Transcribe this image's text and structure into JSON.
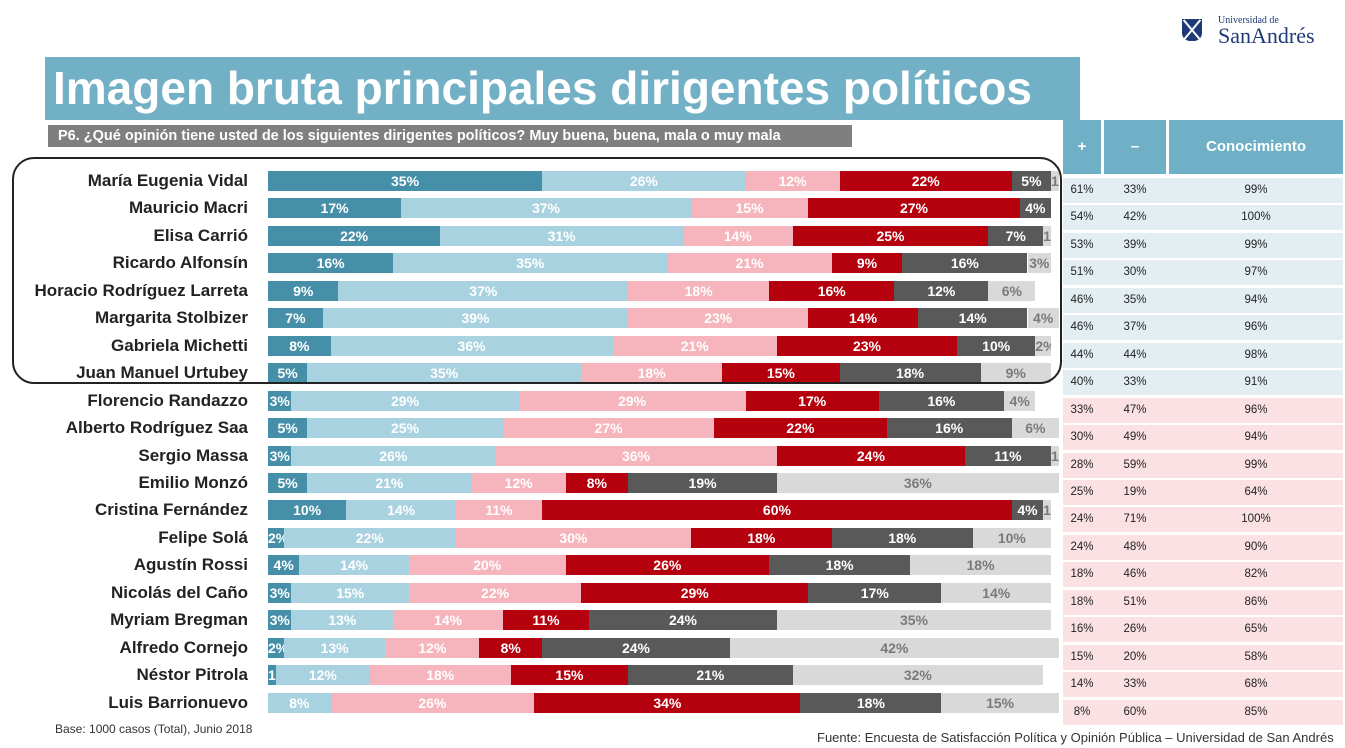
{
  "logo": {
    "line1": "Universidad de",
    "line2": "SanAndrés"
  },
  "title": "Imagen bruta principales dirigentes políticos",
  "subtitle": "P6. ¿Qué opinión tiene usted de los siguientes dirigentes políticos? Muy buena, buena, mala o muy mala",
  "table": {
    "headers": [
      "+",
      "–",
      "Conocimiento"
    ]
  },
  "footer": {
    "base": "Base: 1000 casos (Total),  Junio  2018",
    "fuente": "Fuente: Encuesta de Satisfacción Política y Opinión Pública – Universidad de San Andrés"
  },
  "colors": {
    "muy_buena": "#468fa8",
    "buena": "#a9d2e0",
    "mala": "#f6b4bc",
    "muy_mala": "#b5000d",
    "no_conoce": "#595959",
    "ns_nc": "#d9d9d9",
    "table_positive": "#e3eef3",
    "table_negative": "#fbe1e3"
  },
  "chart_data": {
    "type": "bar",
    "orientation": "horizontal-stacked-100",
    "title": "Imagen bruta principales dirigentes políticos",
    "categories": [
      "María Eugenia Vidal",
      "Mauricio Macri",
      "Elisa Carrió",
      "Ricardo Alfonsín",
      "Horacio Rodríguez Larreta",
      "Margarita Stolbizer",
      "Gabriela Michetti",
      "Juan Manuel Urtubey",
      "Florencio Randazzo",
      "Alberto Rodríguez Saa",
      "Sergio Massa",
      "Emilio Monzó",
      "Cristina Fernández",
      "Felipe Solá",
      "Agustín Rossi",
      "Nicolás del Caño",
      "Myriam Bregman",
      "Alfredo Cornejo",
      "Néstor Pitrola",
      "Luis Barrionuevo"
    ],
    "series": [
      {
        "values": [
          35,
          17,
          22,
          16,
          9,
          7,
          8,
          5,
          3,
          5,
          3,
          5,
          10,
          2,
          4,
          3,
          3,
          2,
          1,
          0
        ]
      },
      {
        "values": [
          26,
          37,
          31,
          35,
          37,
          39,
          36,
          35,
          29,
          25,
          26,
          21,
          14,
          22,
          14,
          15,
          13,
          13,
          12,
          8
        ]
      },
      {
        "values": [
          12,
          15,
          14,
          21,
          18,
          23,
          21,
          18,
          29,
          27,
          36,
          12,
          11,
          30,
          20,
          22,
          14,
          12,
          18,
          26
        ]
      },
      {
        "values": [
          22,
          27,
          25,
          9,
          16,
          14,
          23,
          15,
          17,
          22,
          24,
          8,
          60,
          18,
          26,
          29,
          11,
          8,
          15,
          34
        ]
      },
      {
        "values": [
          5,
          4,
          7,
          16,
          12,
          14,
          10,
          18,
          16,
          16,
          11,
          19,
          4,
          18,
          18,
          17,
          24,
          24,
          21,
          18
        ]
      },
      {
        "values": [
          1,
          0,
          1,
          3,
          6,
          4,
          2,
          9,
          4,
          6,
          1,
          36,
          1,
          10,
          18,
          14,
          35,
          42,
          32,
          15
        ]
      }
    ],
    "highlighted_group": [
      "María Eugenia Vidal",
      "Mauricio Macri",
      "Elisa Carrió",
      "Ricardo Alfonsín",
      "Horacio Rodríguez Larreta",
      "Margarita Stolbizer",
      "Gabriela Michetti",
      "Juan Manuel Urtubey"
    ],
    "table": {
      "positive": [
        "61%",
        "54%",
        "53%",
        "51%",
        "46%",
        "46%",
        "44%",
        "40%",
        "33%",
        "30%",
        "28%",
        "25%",
        "24%",
        "24%",
        "18%",
        "18%",
        "16%",
        "15%",
        "14%",
        "8%"
      ],
      "negative": [
        "33%",
        "42%",
        "39%",
        "30%",
        "35%",
        "37%",
        "44%",
        "33%",
        "47%",
        "49%",
        "59%",
        "19%",
        "71%",
        "48%",
        "46%",
        "51%",
        "26%",
        "20%",
        "33%",
        "60%"
      ],
      "conocimiento": [
        "99%",
        "100%",
        "99%",
        "97%",
        "94%",
        "96%",
        "98%",
        "91%",
        "96%",
        "94%",
        "99%",
        "64%",
        "100%",
        "90%",
        "82%",
        "86%",
        "65%",
        "58%",
        "68%",
        "85%"
      ]
    }
  }
}
